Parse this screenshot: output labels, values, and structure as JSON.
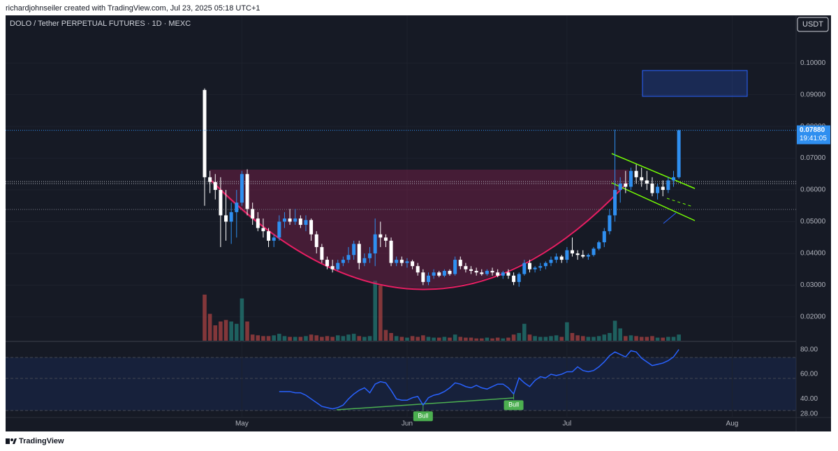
{
  "chart_data": {
    "type": "candlestick",
    "header": "richardjohnseiler created with TradingView.com, Jul 23, 2025 05:18 UTC+1",
    "title": "DOLO / Tether PERPETUAL FUTURES · 1D · MEXC",
    "currency": "USDT",
    "footer": "TradingView",
    "up_color": "#2f8ff0",
    "down_color": "#ffffff",
    "xlim": [
      -37.35,
      111
    ],
    "xticks": [
      {
        "value": 7,
        "label": "May"
      },
      {
        "value": 38,
        "label": "Jun"
      },
      {
        "value": 68,
        "label": "Jul"
      },
      {
        "value": 99,
        "label": "Aug"
      }
    ],
    "ylim": [
      0.0125,
      0.115
    ],
    "yticks": [
      {
        "value": 0.1,
        "label": "0.10000"
      },
      {
        "value": 0.09,
        "label": "0.09000"
      },
      {
        "value": 0.08,
        "label": "0.08000"
      },
      {
        "value": 0.07,
        "label": "0.07000"
      },
      {
        "value": 0.06,
        "label": "0.06000"
      },
      {
        "value": 0.05,
        "label": "0.05000"
      },
      {
        "value": 0.04,
        "label": "0.04000"
      },
      {
        "value": 0.03,
        "label": "0.03000"
      },
      {
        "value": 0.02,
        "label": "0.02000"
      }
    ],
    "open": [
      0.0915,
      0.064,
      0.0625,
      0.06,
      0.052,
      0.05,
      0.053,
      0.056,
      0.065,
      0.054,
      0.051,
      0.048,
      0.047,
      0.044,
      0.045,
      0.05,
      0.051,
      0.05,
      0.051,
      0.049,
      0.0505,
      0.046,
      0.042,
      0.038,
      0.036,
      0.035,
      0.037,
      0.038,
      0.0395,
      0.043,
      0.037,
      0.0385,
      0.04,
      0.046,
      0.045,
      0.044,
      0.037,
      0.038,
      0.037,
      0.0375,
      0.036,
      0.034,
      0.031,
      0.033,
      0.034,
      0.033,
      0.0345,
      0.0335,
      0.038,
      0.036,
      0.035,
      0.0345,
      0.034,
      0.0335,
      0.0345,
      0.034,
      0.033,
      0.034,
      0.033,
      0.031,
      0.0335,
      0.037,
      0.035,
      0.0355,
      0.036,
      0.037,
      0.038,
      0.039,
      0.038,
      0.041,
      0.04,
      0.0395,
      0.039,
      0.0395,
      0.0415,
      0.0435,
      0.047,
      0.052,
      0.06,
      0.062,
      0.061,
      0.066,
      0.064,
      0.063,
      0.062,
      0.059,
      0.061,
      0.06,
      0.063,
      0.064
    ],
    "high": [
      0.092,
      0.066,
      0.065,
      0.064,
      0.06,
      0.056,
      0.06,
      0.066,
      0.0665,
      0.056,
      0.053,
      0.051,
      0.048,
      0.046,
      0.052,
      0.053,
      0.054,
      0.054,
      0.052,
      0.052,
      0.051,
      0.047,
      0.043,
      0.039,
      0.038,
      0.038,
      0.039,
      0.042,
      0.044,
      0.044,
      0.04,
      0.042,
      0.051,
      0.05,
      0.046,
      0.045,
      0.039,
      0.039,
      0.0385,
      0.038,
      0.037,
      0.035,
      0.034,
      0.035,
      0.0345,
      0.035,
      0.035,
      0.039,
      0.039,
      0.037,
      0.036,
      0.0355,
      0.035,
      0.035,
      0.0355,
      0.035,
      0.0345,
      0.035,
      0.034,
      0.034,
      0.038,
      0.038,
      0.036,
      0.037,
      0.0375,
      0.039,
      0.04,
      0.0395,
      0.042,
      0.045,
      0.041,
      0.041,
      0.04,
      0.042,
      0.044,
      0.048,
      0.054,
      0.079,
      0.064,
      0.066,
      0.067,
      0.068,
      0.067,
      0.066,
      0.064,
      0.062,
      0.063,
      0.064,
      0.066,
      0.079
    ],
    "low": [
      0.055,
      0.059,
      0.057,
      0.042,
      0.044,
      0.043,
      0.045,
      0.055,
      0.052,
      0.049,
      0.047,
      0.045,
      0.042,
      0.042,
      0.044,
      0.048,
      0.049,
      0.049,
      0.048,
      0.047,
      0.044,
      0.04,
      0.037,
      0.035,
      0.034,
      0.0345,
      0.036,
      0.037,
      0.038,
      0.035,
      0.036,
      0.037,
      0.036,
      0.042,
      0.042,
      0.036,
      0.036,
      0.036,
      0.0355,
      0.035,
      0.033,
      0.03,
      0.03,
      0.032,
      0.0325,
      0.0325,
      0.033,
      0.033,
      0.035,
      0.034,
      0.0335,
      0.033,
      0.033,
      0.033,
      0.033,
      0.0325,
      0.032,
      0.032,
      0.03,
      0.0295,
      0.033,
      0.034,
      0.034,
      0.0345,
      0.035,
      0.036,
      0.037,
      0.037,
      0.037,
      0.039,
      0.038,
      0.0385,
      0.038,
      0.039,
      0.041,
      0.042,
      0.046,
      0.05,
      0.056,
      0.059,
      0.06,
      0.062,
      0.061,
      0.06,
      0.058,
      0.057,
      0.058,
      0.059,
      0.061,
      0.0635
    ],
    "close": [
      0.064,
      0.0625,
      0.06,
      0.052,
      0.05,
      0.053,
      0.056,
      0.065,
      0.054,
      0.051,
      0.048,
      0.047,
      0.044,
      0.045,
      0.05,
      0.051,
      0.05,
      0.051,
      0.049,
      0.0505,
      0.046,
      0.042,
      0.038,
      0.036,
      0.035,
      0.037,
      0.038,
      0.0395,
      0.043,
      0.037,
      0.0385,
      0.04,
      0.046,
      0.045,
      0.044,
      0.037,
      0.038,
      0.037,
      0.0375,
      0.036,
      0.034,
      0.031,
      0.033,
      0.034,
      0.033,
      0.0345,
      0.0335,
      0.038,
      0.036,
      0.035,
      0.0345,
      0.034,
      0.0335,
      0.0345,
      0.034,
      0.033,
      0.034,
      0.033,
      0.031,
      0.0335,
      0.037,
      0.035,
      0.0355,
      0.036,
      0.037,
      0.038,
      0.039,
      0.038,
      0.041,
      0.04,
      0.0395,
      0.039,
      0.0395,
      0.0415,
      0.0435,
      0.047,
      0.052,
      0.06,
      0.062,
      0.061,
      0.066,
      0.064,
      0.063,
      0.062,
      0.059,
      0.061,
      0.06,
      0.063,
      0.064,
      0.0788
    ],
    "volume": [
      60,
      35,
      20,
      25,
      27,
      25,
      22,
      55,
      25,
      8,
      7,
      6,
      6,
      7,
      9,
      6,
      5,
      5,
      5,
      6,
      8,
      7,
      5,
      6,
      5,
      7,
      6,
      8,
      9,
      6,
      5,
      6,
      78,
      72,
      14,
      10,
      6,
      5,
      4,
      6,
      5,
      7,
      5,
      4,
      4,
      5,
      4,
      8,
      5,
      4,
      4,
      3,
      3,
      4,
      3,
      4,
      3,
      4,
      8,
      10,
      22,
      8,
      6,
      5,
      5,
      6,
      7,
      5,
      24,
      10,
      7,
      6,
      5,
      5,
      6,
      8,
      10,
      26,
      16,
      6,
      7,
      6,
      5,
      5,
      6,
      4,
      4,
      5,
      5,
      8
    ],
    "volume_lim": [
      0,
      100
    ],
    "last_price_label": "0.07880",
    "countdown": "19:41:05",
    "rsi": {
      "color": "#2962ff",
      "ylim": [
        25,
        86
      ],
      "yticks": [
        {
          "value": 80,
          "label": "80.00"
        },
        {
          "value": 60,
          "label": "60.00"
        },
        {
          "value": 40,
          "label": "40.00"
        },
        {
          "value": 28,
          "label": "28.00"
        }
      ],
      "values": [
        null,
        null,
        null,
        null,
        null,
        null,
        null,
        null,
        null,
        null,
        null,
        null,
        null,
        null,
        46,
        46,
        46,
        45,
        45,
        43,
        40,
        37,
        34,
        33,
        32,
        33,
        35,
        40,
        44,
        47,
        49,
        45,
        52,
        54,
        53,
        47,
        40,
        39,
        39,
        41,
        42,
        35,
        41,
        43,
        44,
        46,
        49,
        53,
        52,
        50,
        49,
        51,
        49,
        48,
        50,
        52,
        52,
        49,
        44,
        57,
        53,
        50,
        55,
        58,
        57,
        60,
        59,
        60,
        62,
        62,
        66,
        63,
        62,
        63,
        66,
        70,
        75,
        78,
        76,
        74,
        79,
        78,
        73,
        70,
        67,
        68,
        69,
        71,
        74,
        80
      ],
      "labels": [
        "Bull",
        "Bull"
      ]
    }
  }
}
